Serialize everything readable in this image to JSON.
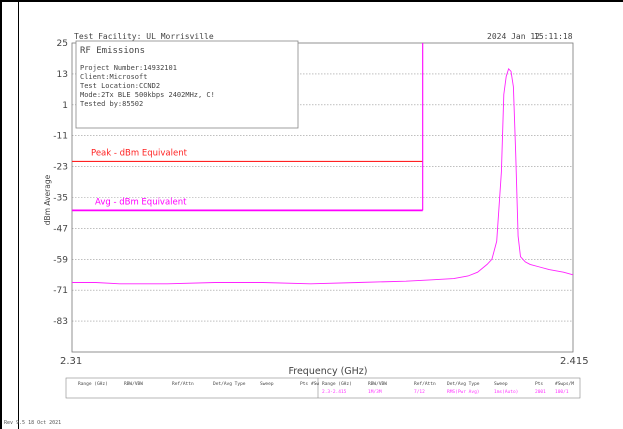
{
  "header": {
    "facility": "Test Facility:  UL Morrisville",
    "date": "2024 Jan 12",
    "time": "15:11:18"
  },
  "info_box": {
    "title": "RF Emissions",
    "lines": [
      "Project Number:14932101",
      "Client:Microsoft",
      "Test Location:CCND2",
      "Mode:2Tx BLE 500kbps 2402MHz, C!",
      "Tested by:85502"
    ]
  },
  "footer": {
    "revision": "Rev 9.5 18 Oct 2021",
    "table_headers": [
      "Range (GHz)",
      "RBW/VBW",
      "Ref/Attn",
      "Det/Avg Type",
      "Sweep",
      "Pts",
      "#Sw"
    ],
    "row_headers": [
      "Range (GHz)",
      "RBW/VBW",
      "Ref/Attn",
      "Det/Avg Type",
      "Sweep",
      "Pts",
      "#Swps/M"
    ],
    "row_values": [
      "2.3-2.415",
      "1M/3M",
      "7/12",
      "RMS(Pwr Avg)",
      "1ms(Auto)",
      "2001",
      "100/1"
    ]
  },
  "chart_data": {
    "type": "line",
    "xlabel": "Frequency (GHz)",
    "ylabel": "dBm Average",
    "xlim": [
      2.31,
      2.415
    ],
    "ylim": [
      -95,
      25
    ],
    "x_tick_labels": [
      "2.31",
      "2.415"
    ],
    "y_ticks": [
      25,
      13,
      1,
      -11,
      -23,
      -35,
      -47,
      -59,
      -71,
      -83
    ],
    "grid": true,
    "colors": {
      "trace": "#ff22ff",
      "peak_limit": "#ff2222",
      "avg_limit": "#ff00ff",
      "grid": "#999999"
    },
    "limit_lines": [
      {
        "label": "Peak - dBm Equivalent",
        "y": -21,
        "x_end": 2.3835
      },
      {
        "label": "Avg - dBm Equivalent",
        "y": -40,
        "x_end": 2.3835
      }
    ],
    "band_edge_marker_x": 2.3835,
    "series": [
      {
        "x": [
          2.31,
          2.315,
          2.32,
          2.33,
          2.34,
          2.35,
          2.36,
          2.37,
          2.38,
          2.385,
          2.39,
          2.393,
          2.395,
          2.397,
          2.398,
          2.399,
          2.4,
          2.4005,
          2.401,
          2.4015,
          2.402,
          2.4025,
          2.403,
          2.4035,
          2.404,
          2.405,
          2.406,
          2.408,
          2.41,
          2.413,
          2.415
        ],
        "y": [
          -68,
          -68,
          -68.5,
          -68.5,
          -68,
          -68,
          -68.5,
          -68,
          -67.5,
          -67,
          -66.5,
          -65.5,
          -64,
          -61,
          -59,
          -52,
          -25,
          5,
          12,
          15,
          14,
          8,
          -18,
          -50,
          -58,
          -60,
          -61,
          -62,
          -63,
          -64,
          -65
        ]
      }
    ]
  }
}
